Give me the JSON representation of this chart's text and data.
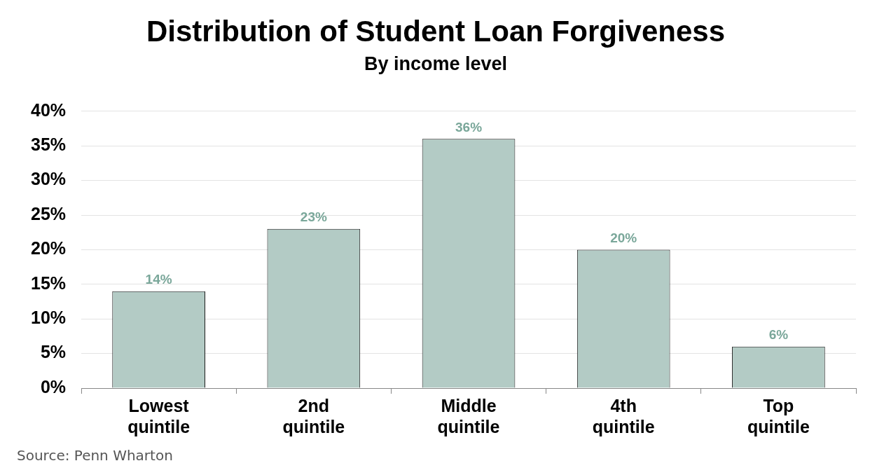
{
  "chart_data": {
    "type": "bar",
    "title": "Distribution of Student Loan Forgiveness",
    "subtitle": "By income level",
    "categories": [
      "Lowest quintile",
      "2nd quintile",
      "Middle quintile",
      "4th quintile",
      "Top quintile"
    ],
    "values": [
      14,
      23,
      36,
      20,
      6
    ],
    "value_labels": [
      "14%",
      "23%",
      "36%",
      "20%",
      "6%"
    ],
    "color": "#b3cbc5",
    "ylim": [
      0,
      40
    ],
    "yticks": [
      {
        "value": 0,
        "label": "0%"
      },
      {
        "value": 5,
        "label": "5%"
      },
      {
        "value": 10,
        "label": "10%"
      },
      {
        "value": 15,
        "label": "15%"
      },
      {
        "value": 20,
        "label": "20%"
      },
      {
        "value": 25,
        "label": "25%"
      },
      {
        "value": 30,
        "label": "30%"
      },
      {
        "value": 35,
        "label": "35%"
      },
      {
        "value": 40,
        "label": "40%"
      }
    ],
    "grid": "y",
    "annotations": [
      "Source: Penn Wharton"
    ]
  }
}
